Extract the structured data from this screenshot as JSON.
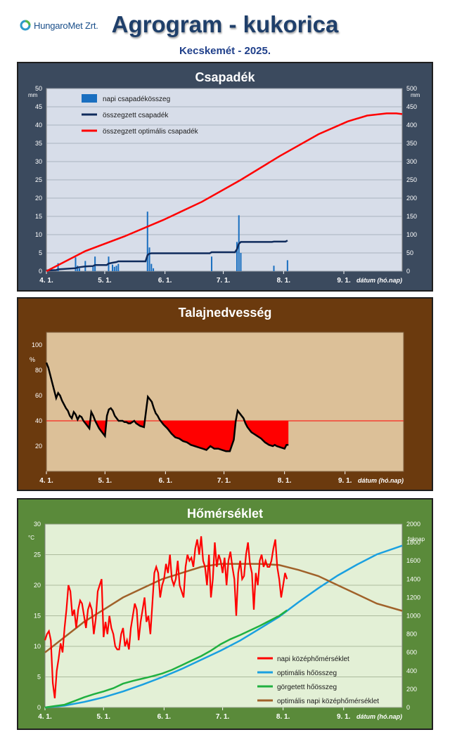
{
  "header": {
    "logo_text": "HungaroMet Zrt.",
    "title": "Agrogram - kukorica",
    "subtitle": "Kecskemét - 2025."
  },
  "colors": {
    "csapadek_bg": "#3b4a5e",
    "talaj_bg": "#6b3a0e",
    "hom_bg": "#5a8a3a",
    "daily_precip": "#1a6fc0",
    "cum_precip": "#0f2b5c",
    "optimal_precip": "#ff0000",
    "soil": "#000000",
    "deficit": "#ff0000",
    "daily_temp": "#ff0000",
    "optimal_heat": "#1aa0e0",
    "rolling_heat": "#20b040",
    "optimal_temp": "#a0622a"
  },
  "chart_data": [
    {
      "type": "bar",
      "title": "Csapadék",
      "xlabel": "dátum (hó.nap)",
      "ylabel": "mm",
      "ylabel_right": "mm",
      "x_ticks": [
        "4. 1.",
        "5. 1.",
        "6. 1.",
        "7. 1.",
        "8. 1.",
        "9. 1."
      ],
      "x_tick_days": [
        0,
        30,
        61,
        91,
        122,
        153
      ],
      "xlim": [
        0,
        183
      ],
      "ylim": [
        0,
        50
      ],
      "ylim_right": [
        0,
        500
      ],
      "y_ticks": [
        0,
        5,
        10,
        15,
        20,
        25,
        30,
        35,
        40,
        45,
        50
      ],
      "y_ticks_right": [
        0,
        50,
        100,
        150,
        200,
        250,
        300,
        350,
        400,
        450,
        500
      ],
      "grid": true,
      "legend": "top-left",
      "series": [
        {
          "name": "napi csapadékösszeg",
          "kind": "bar",
          "axis": "left",
          "x": [
            6,
            15,
            16,
            17,
            20,
            24,
            25,
            32,
            34,
            35,
            36,
            37,
            52,
            53,
            54,
            55,
            85,
            98,
            99,
            100,
            117,
            124
          ],
          "values": [
            2.2,
            3.8,
            1.5,
            0.8,
            2.8,
            1.2,
            4.0,
            4.0,
            1.8,
            1.2,
            1.5,
            2.0,
            16.3,
            6.5,
            2.0,
            0.8,
            4.0,
            8.0,
            15.3,
            5.0,
            1.5,
            3.0
          ]
        },
        {
          "name": "összegzett csapadék",
          "kind": "line",
          "axis": "left",
          "x": [
            0,
            5,
            6,
            15,
            16,
            17,
            20,
            24,
            25,
            31,
            32,
            34,
            35,
            36,
            37,
            51,
            52,
            53,
            54,
            55,
            84,
            85,
            97,
            98,
            99,
            100,
            116,
            117,
            123,
            124
          ],
          "values": [
            0.2,
            0.3,
            0.5,
            0.8,
            1.0,
            1.1,
            1.3,
            1.4,
            1.7,
            1.7,
            2.1,
            2.3,
            2.4,
            2.5,
            2.7,
            2.7,
            4.4,
            4.8,
            4.9,
            4.9,
            4.9,
            5.2,
            5.2,
            6.0,
            7.5,
            8.0,
            8.0,
            8.1,
            8.1,
            8.4
          ]
        },
        {
          "name": "összegzett optimális csapadék",
          "kind": "line",
          "axis": "left",
          "x": [
            0,
            20,
            40,
            60,
            80,
            100,
            120,
            140,
            155,
            165,
            175,
            180,
            183
          ],
          "values": [
            0,
            5.5,
            9.5,
            14,
            19,
            25,
            31.5,
            37.5,
            41,
            42.6,
            43.2,
            43.2,
            43.0
          ]
        }
      ]
    },
    {
      "type": "line",
      "title": "Talajnedvesség",
      "xlabel": "dátum (hó.nap)",
      "ylabel": "%",
      "x_ticks": [
        "4. 1.",
        "5. 1.",
        "6. 1.",
        "7. 1.",
        "8. 1.",
        "9. 1."
      ],
      "x_tick_days": [
        0,
        30,
        61,
        91,
        122,
        153
      ],
      "xlim": [
        0,
        183
      ],
      "ylim": [
        0,
        110
      ],
      "y_ticks": [
        20,
        40,
        60,
        80,
        100
      ],
      "threshold": 40,
      "grid": false,
      "series": [
        {
          "name": "",
          "x": [
            0,
            1,
            3,
            5,
            6,
            7,
            8,
            10,
            11,
            12,
            13,
            14,
            15,
            16,
            17,
            18,
            19,
            20,
            21,
            22,
            23,
            24,
            25,
            26,
            27,
            28,
            29,
            30,
            31,
            32,
            33,
            34,
            35,
            36,
            37,
            38,
            39,
            40,
            41,
            42,
            43,
            44,
            45,
            46,
            48,
            50,
            52,
            53,
            54,
            55,
            56,
            57,
            58,
            60,
            62,
            64,
            66,
            68,
            70,
            72,
            74,
            76,
            78,
            80,
            82,
            84,
            85,
            86,
            88,
            90,
            92,
            94,
            96,
            97,
            98,
            99,
            100,
            101,
            102,
            103,
            104,
            105,
            106,
            108,
            110,
            112,
            114,
            116,
            117,
            118,
            120,
            122,
            123,
            124
          ],
          "values": [
            86,
            82,
            70,
            58,
            62,
            60,
            56,
            50,
            48,
            44,
            42,
            47,
            45,
            41,
            44,
            43,
            40,
            38,
            36,
            34,
            47,
            44,
            40,
            37,
            34,
            32,
            30,
            28,
            44,
            49,
            50,
            48,
            44,
            42,
            40,
            40,
            40,
            39,
            39,
            38,
            38,
            39,
            40,
            38,
            36,
            35,
            59,
            57,
            55,
            50,
            46,
            44,
            41,
            37,
            34,
            30,
            27,
            26,
            24,
            23,
            21,
            20,
            19,
            18,
            17,
            20,
            19,
            18,
            18,
            17,
            16,
            16,
            25,
            40,
            48,
            46,
            44,
            42,
            38,
            35,
            33,
            31,
            30,
            28,
            26,
            23,
            21,
            20,
            21,
            20,
            19,
            18,
            21,
            21
          ]
        }
      ]
    },
    {
      "type": "line",
      "title": "Hőmérséklet",
      "xlabel": "dátum (hó.nap)",
      "ylabel": "°C",
      "ylabel_right": "foknap",
      "x_ticks": [
        "4. 1.",
        "5. 1.",
        "6. 1.",
        "7. 1.",
        "8. 1.",
        "9. 1."
      ],
      "x_tick_days": [
        0,
        30,
        61,
        91,
        122,
        153
      ],
      "xlim": [
        0,
        183
      ],
      "ylim": [
        0,
        30
      ],
      "ylim_right": [
        0,
        2000
      ],
      "y_ticks": [
        0,
        5,
        10,
        15,
        20,
        25,
        30
      ],
      "y_ticks_right": [
        0,
        200,
        400,
        600,
        800,
        1000,
        1200,
        1400,
        1600,
        1800,
        2000
      ],
      "grid": true,
      "legend": "bottom-right",
      "series": [
        {
          "name": "napi középhőmérséklet",
          "axis": "left",
          "x": [
            0,
            1,
            2,
            3,
            4,
            5,
            6,
            7,
            8,
            9,
            10,
            11,
            12,
            13,
            14,
            15,
            16,
            17,
            18,
            19,
            20,
            21,
            22,
            23,
            24,
            25,
            26,
            27,
            28,
            29,
            30,
            31,
            32,
            33,
            34,
            35,
            36,
            37,
            38,
            39,
            40,
            41,
            42,
            43,
            44,
            45,
            46,
            47,
            48,
            49,
            50,
            51,
            52,
            53,
            54,
            55,
            56,
            57,
            58,
            59,
            60,
            61,
            62,
            63,
            64,
            65,
            66,
            67,
            68,
            69,
            70,
            71,
            72,
            73,
            74,
            75,
            76,
            77,
            78,
            79,
            80,
            81,
            82,
            83,
            84,
            85,
            86,
            87,
            88,
            89,
            90,
            91,
            92,
            93,
            94,
            95,
            96,
            97,
            98,
            99,
            100,
            101,
            102,
            103,
            104,
            105,
            106,
            107,
            108,
            109,
            110,
            111,
            112,
            113,
            114,
            115,
            116,
            117,
            118,
            119,
            120,
            121,
            122,
            123,
            124
          ],
          "values": [
            11,
            12,
            12.5,
            11,
            4,
            1.5,
            6,
            8,
            10.5,
            9,
            13,
            16,
            20,
            19,
            15,
            16,
            13,
            16,
            17.5,
            17,
            15,
            13,
            16,
            17,
            16,
            12,
            14.5,
            19,
            20,
            21,
            11.5,
            14,
            12,
            15,
            13,
            12,
            10,
            9.5,
            9.5,
            12,
            13,
            10,
            11,
            9.5,
            13,
            15,
            17,
            16,
            11,
            14,
            16,
            18,
            14,
            15,
            12,
            17,
            22,
            23,
            22,
            18,
            20,
            21,
            23.5,
            22,
            25,
            21,
            20,
            21,
            24,
            20,
            19,
            18,
            23,
            25,
            24,
            24.5,
            23,
            26,
            27.5,
            25,
            28,
            24,
            23,
            20,
            25,
            18,
            21,
            27,
            23,
            25,
            24,
            22,
            24.5,
            20,
            24,
            25.5,
            23,
            21,
            15,
            22,
            24,
            21,
            21.5,
            25,
            27,
            23.5,
            22,
            16,
            22,
            20,
            24,
            25,
            23,
            24,
            23,
            23,
            24,
            26,
            27.5,
            23,
            21,
            18,
            20,
            22,
            21
          ]
        },
        {
          "name": "optimális hőösszeg",
          "axis": "right",
          "x": [
            0,
            10,
            20,
            30,
            40,
            50,
            60,
            70,
            80,
            90,
            100,
            110,
            120,
            130,
            140,
            150,
            160,
            170,
            183
          ],
          "values": [
            0,
            20,
            60,
            110,
            175,
            250,
            330,
            420,
            520,
            620,
            730,
            860,
            990,
            1150,
            1300,
            1440,
            1560,
            1670,
            1765
          ]
        },
        {
          "name": "görgetett hőösszeg",
          "axis": "right",
          "x": [
            0,
            5,
            10,
            15,
            20,
            25,
            30,
            35,
            40,
            45,
            50,
            55,
            60,
            65,
            70,
            75,
            80,
            85,
            90,
            95,
            100,
            105,
            110,
            115,
            120,
            124
          ],
          "values": [
            0,
            15,
            30,
            70,
            110,
            145,
            175,
            210,
            260,
            290,
            315,
            340,
            370,
            410,
            460,
            510,
            560,
            620,
            690,
            745,
            790,
            840,
            890,
            945,
            1000,
            1060
          ]
        },
        {
          "name": "optimális napi középhőmérséklet",
          "axis": "left",
          "x": [
            0,
            10,
            20,
            30,
            40,
            50,
            60,
            70,
            80,
            90,
            100,
            110,
            120,
            130,
            140,
            150,
            160,
            170,
            183
          ],
          "values": [
            9,
            11.5,
            14,
            16,
            18,
            19.5,
            21,
            22,
            23,
            23.5,
            23.5,
            23.5,
            23.3,
            22.5,
            21.5,
            20,
            18.5,
            17,
            15.8
          ]
        }
      ]
    }
  ]
}
